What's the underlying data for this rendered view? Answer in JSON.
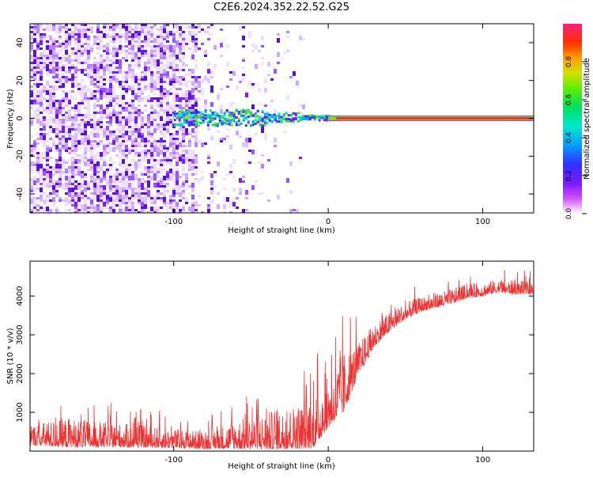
{
  "title": "C2E6.2024.352.22.52.G25",
  "chart_data": [
    {
      "type": "heatmap",
      "xlabel": "Height of straight line (km)",
      "ylabel": "Frequency (Hz)",
      "xlim": [
        -193,
        133
      ],
      "ylim": [
        -50,
        50
      ],
      "x_ticks": [
        -100,
        0,
        100
      ],
      "x_tick_labels": [
        "-100",
        "0",
        "100"
      ],
      "y_ticks": [
        -40,
        -20,
        0,
        20,
        40
      ],
      "y_tick_labels": [
        "-40",
        "-20",
        "0",
        "20",
        "40"
      ],
      "colorbar": {
        "label": "Normalized spectral amplitude",
        "range": [
          0,
          1
        ],
        "ticks": [
          0.0,
          0.2,
          0.4,
          0.6,
          0.8
        ],
        "tick_labels": [
          "0.0",
          "0.2",
          "0.4",
          "0.6",
          "0.8"
        ]
      },
      "features": {
        "scatter_region_x": [
          -193,
          -40
        ],
        "signal_center_hz": 0,
        "strong_line_start_x": 0
      }
    },
    {
      "type": "line",
      "xlabel": "Height of straight line (km)",
      "ylabel": "SNR (10 * v/v)",
      "xlim": [
        -193,
        133
      ],
      "ylim": [
        0,
        4900
      ],
      "x_ticks": [
        -100,
        0,
        100
      ],
      "x_tick_labels": [
        "-100",
        "0",
        "100"
      ],
      "y_ticks": [
        1000,
        2000,
        3000,
        4000
      ],
      "y_tick_labels": [
        "1000",
        "2000",
        "3000",
        "4000"
      ],
      "color": "#ee3333",
      "envelope": {
        "x": [
          -193,
          -170,
          -150,
          -130,
          -100,
          -80,
          -60,
          -40,
          -30,
          -20,
          -10,
          0,
          10,
          20,
          30,
          40,
          50,
          60,
          70,
          80,
          90,
          100,
          110,
          120,
          133
        ],
        "lower": [
          150,
          100,
          100,
          100,
          80,
          60,
          60,
          50,
          50,
          60,
          80,
          600,
          1000,
          2000,
          2700,
          3100,
          3400,
          3600,
          3700,
          3800,
          3950,
          4000,
          4100,
          4050,
          4050
        ],
        "upper": [
          1100,
          1500,
          1300,
          1200,
          1000,
          900,
          1400,
          1800,
          1900,
          2200,
          2500,
          3000,
          3900,
          3500,
          3800,
          4000,
          4200,
          4300,
          4400,
          4500,
          4600,
          4650,
          4700,
          4700,
          4650
        ]
      }
    }
  ]
}
